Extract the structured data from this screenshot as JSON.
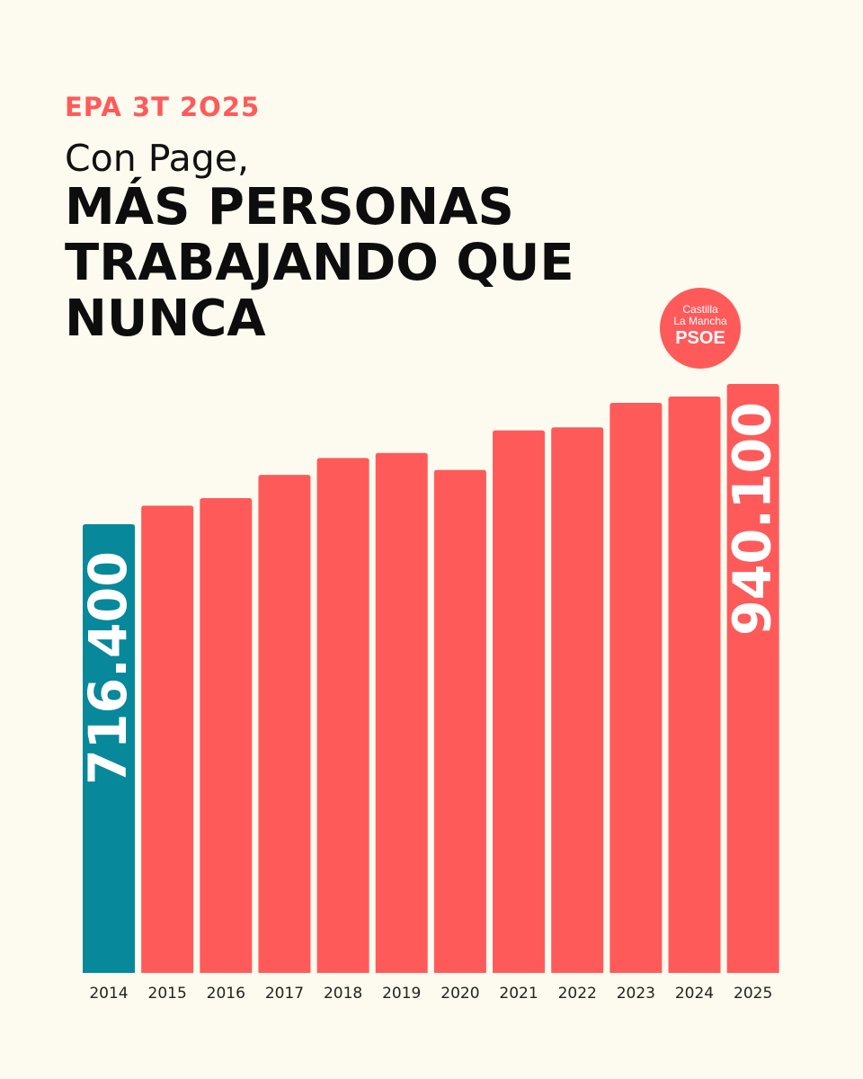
{
  "header": {
    "kicker": "EPA 3T 2O25",
    "subtitle": "Con Page,",
    "headline": "MÁS PERSONAS TRABAJANDO QUE NUNCA"
  },
  "logo": {
    "line1": "Castilla",
    "line2": "La Mancha",
    "line3": "PSOE"
  },
  "colors": {
    "accent": "#ff5a5a",
    "highlight": "#07889b",
    "text": "#0d0d0d",
    "background": "#fdfbef",
    "bar_label": "#ffffff"
  },
  "chart_data": {
    "type": "bar",
    "categories": [
      "2014",
      "2015",
      "2016",
      "2017",
      "2018",
      "2019",
      "2020",
      "2021",
      "2022",
      "2023",
      "2024",
      "2025"
    ],
    "values": [
      716400,
      746000,
      758000,
      795000,
      822000,
      830000,
      803000,
      866000,
      871000,
      910000,
      920000,
      940100
    ],
    "highlight_index": 0,
    "data_labels": [
      {
        "index": 0,
        "text": "716.400"
      },
      {
        "index": 11,
        "text": "940.100"
      }
    ],
    "title": "MÁS PERSONAS TRABAJANDO QUE NUNCA",
    "xlabel": "",
    "ylabel": "",
    "grid": false,
    "legend": "none"
  }
}
